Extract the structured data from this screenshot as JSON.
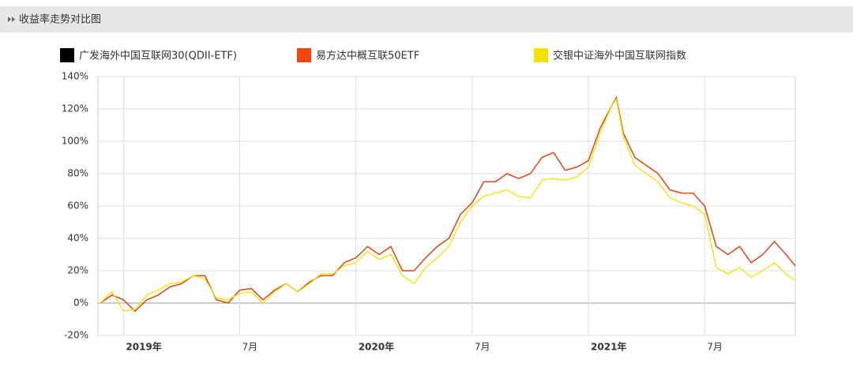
{
  "header": {
    "title": "收益率走势对比图"
  },
  "chart_data": {
    "type": "line",
    "x": [
      2018.9,
      2018.95,
      2019.0,
      2019.05,
      2019.1,
      2019.15,
      2019.2,
      2019.25,
      2019.3,
      2019.35,
      2019.4,
      2019.45,
      2019.5,
      2019.55,
      2019.6,
      2019.65,
      2019.7,
      2019.75,
      2019.8,
      2019.85,
      2019.9,
      2019.95,
      2020.0,
      2020.05,
      2020.1,
      2020.15,
      2020.2,
      2020.25,
      2020.3,
      2020.35,
      2020.4,
      2020.45,
      2020.5,
      2020.55,
      2020.6,
      2020.65,
      2020.7,
      2020.75,
      2020.8,
      2020.85,
      2020.9,
      2020.95,
      2021.0,
      2021.05,
      2021.1,
      2021.12,
      2021.15,
      2021.2,
      2021.25,
      2021.3,
      2021.35,
      2021.4,
      2021.45,
      2021.5,
      2021.55,
      2021.6,
      2021.65,
      2021.7,
      2021.75,
      2021.8,
      2021.85,
      2021.89
    ],
    "series": [
      {
        "name": "广发海外中国互联网30(QDII-ETF)",
        "color": "#000000",
        "values": [
          0,
          5,
          2,
          -5,
          2,
          5,
          10,
          12,
          17,
          17,
          2,
          0,
          8,
          9,
          2,
          8,
          12,
          7,
          13,
          17,
          17,
          25,
          28,
          35,
          30,
          35,
          20,
          20,
          28,
          35,
          40,
          55,
          62,
          75,
          75,
          80,
          77,
          80,
          90,
          93,
          82,
          84,
          88,
          108,
          122,
          127,
          105,
          90,
          85,
          80,
          70,
          68,
          68,
          60,
          35,
          30,
          35,
          25,
          30,
          38,
          30,
          23
        ]
      },
      {
        "name": "易方达中概互联50ETF",
        "color": "#f5480f",
        "values": [
          0,
          5,
          2,
          -5,
          2,
          5,
          10,
          12,
          17,
          17,
          2,
          0,
          8,
          9,
          2,
          8,
          12,
          7,
          13,
          17,
          17,
          25,
          28,
          35,
          30,
          35,
          20,
          20,
          28,
          35,
          40,
          55,
          62,
          75,
          75,
          80,
          77,
          80,
          90,
          93,
          82,
          84,
          88,
          108,
          122,
          127,
          105,
          90,
          85,
          80,
          70,
          68,
          68,
          60,
          35,
          30,
          35,
          25,
          30,
          38,
          30,
          23
        ]
      },
      {
        "name": "交银中证海外中国互联网指数",
        "color": "#f2e300",
        "values": [
          0,
          7,
          -5,
          -4,
          5,
          8,
          12,
          13,
          17,
          15,
          3,
          2,
          6,
          7,
          0,
          7,
          12,
          7,
          12,
          18,
          18,
          23,
          25,
          32,
          27,
          30,
          17,
          12,
          22,
          28,
          35,
          50,
          60,
          66,
          68,
          70,
          66,
          65,
          76,
          77,
          76,
          78,
          84,
          105,
          122,
          126,
          103,
          85,
          80,
          75,
          65,
          62,
          60,
          55,
          22,
          18,
          22,
          16,
          20,
          25,
          18,
          14
        ]
      }
    ],
    "xlim": [
      2018.89,
      2021.89
    ],
    "xticks": [
      {
        "value": 2019,
        "label": "2019年"
      },
      {
        "value": 2019.5,
        "label": "7月"
      },
      {
        "value": 2020,
        "label": "2020年"
      },
      {
        "value": 2020.5,
        "label": "7月"
      },
      {
        "value": 2021,
        "label": "2021年"
      },
      {
        "value": 2021.5,
        "label": "7月"
      }
    ],
    "ylim": [
      -20,
      140
    ],
    "yticks": [
      {
        "value": -20,
        "label": "-20%"
      },
      {
        "value": 0,
        "label": "0%"
      },
      {
        "value": 20,
        "label": "20%"
      },
      {
        "value": 40,
        "label": "40%"
      },
      {
        "value": 60,
        "label": "60%"
      },
      {
        "value": 80,
        "label": "80%"
      },
      {
        "value": 100,
        "label": "100%"
      },
      {
        "value": 120,
        "label": "120%"
      },
      {
        "value": 140,
        "label": "140%"
      }
    ],
    "grid": true
  }
}
